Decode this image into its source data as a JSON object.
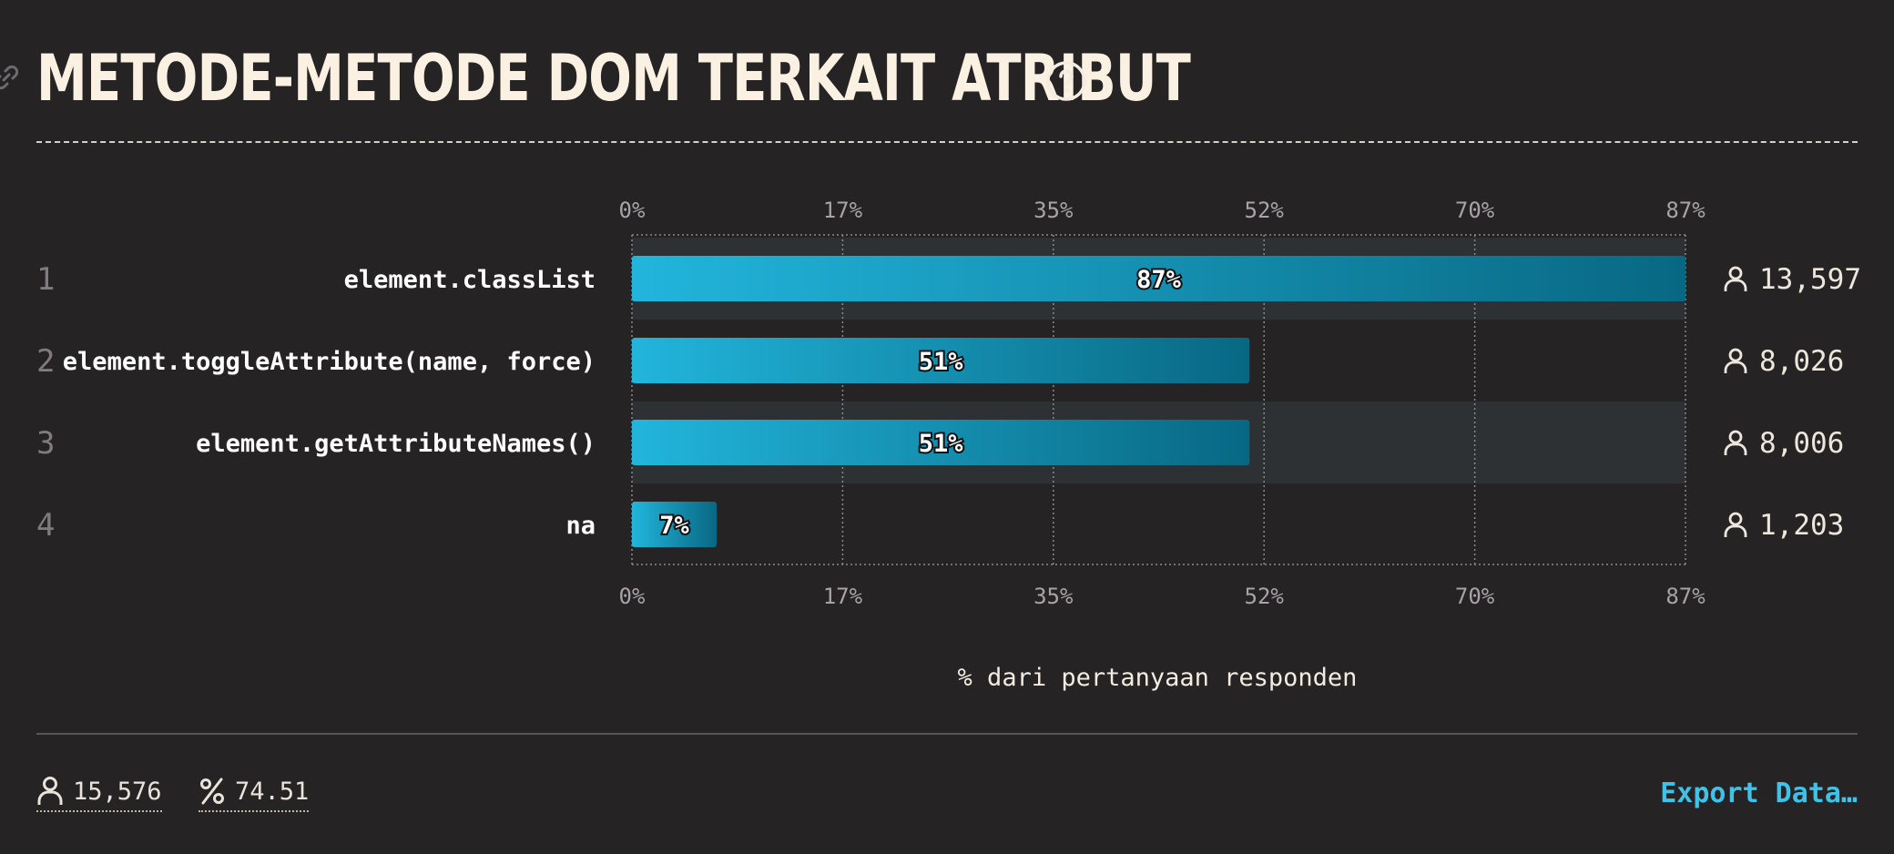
{
  "header": {
    "title": "METODE-METODE DOM TERKAIT ATRIBUT",
    "help_icon": "question-circle-icon",
    "link_icon": "link-icon"
  },
  "chart_data": {
    "type": "bar",
    "orientation": "horizontal",
    "title": "METODE-METODE DOM TERKAIT ATRIBUT",
    "categories": [
      "element.classList",
      "element.toggleAttribute(name, force)",
      "element.getAttributeNames()",
      "na"
    ],
    "ranks": [
      "1",
      "2",
      "3",
      "4"
    ],
    "values": [
      87,
      51,
      51,
      7
    ],
    "value_labels": [
      "87%",
      "51%",
      "51%",
      "7%"
    ],
    "counts": [
      "13,597",
      "8,026",
      "8,006",
      "1,203"
    ],
    "xlim": [
      0,
      87
    ],
    "xticks": [
      0,
      17.4,
      34.8,
      52.2,
      69.6,
      87
    ],
    "xtick_labels": [
      "0%",
      "17%",
      "35%",
      "52%",
      "70%",
      "87%"
    ],
    "xlabel": "% dari pertanyaan responden",
    "grid": true,
    "colors": {
      "bar_start": "#22b5dc",
      "bar_end": "#086883",
      "band": "#2d3134"
    }
  },
  "footer": {
    "respondents": "15,576",
    "percent": "74.51",
    "export_label": "Export Data…",
    "respondents_icon": "user-icon",
    "percent_icon": "percent-icon"
  }
}
